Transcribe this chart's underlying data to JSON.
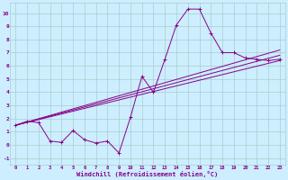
{
  "xlabel": "Windchill (Refroidissement éolien,°C)",
  "bg_color": "#cceeff",
  "grid_color": "#aacccc",
  "line_color": "#880088",
  "xlim": [
    -0.5,
    23.5
  ],
  "ylim": [
    -1.5,
    10.8
  ],
  "xticks": [
    0,
    1,
    2,
    3,
    4,
    5,
    6,
    7,
    8,
    9,
    10,
    11,
    12,
    13,
    14,
    15,
    16,
    17,
    18,
    19,
    20,
    21,
    22,
    23
  ],
  "yticks": [
    -1,
    0,
    1,
    2,
    3,
    4,
    5,
    6,
    7,
    8,
    9,
    10
  ],
  "series1_x": [
    0,
    1,
    2,
    3,
    4,
    5,
    6,
    7,
    8,
    9,
    10,
    11,
    12,
    13,
    14,
    15,
    16,
    17,
    18,
    19,
    20,
    21,
    22,
    23
  ],
  "series1_y": [
    1.5,
    1.8,
    1.7,
    0.3,
    0.2,
    1.1,
    0.4,
    0.15,
    0.3,
    -0.6,
    2.1,
    5.2,
    4.0,
    6.5,
    9.1,
    10.3,
    10.3,
    8.5,
    7.0,
    7.0,
    6.6,
    6.5,
    6.4,
    6.5
  ],
  "line1_x": [
    0,
    23
  ],
  "line1_y": [
    1.5,
    6.4
  ],
  "line2_x": [
    0,
    23
  ],
  "line2_y": [
    1.5,
    6.8
  ],
  "line3_x": [
    0,
    23
  ],
  "line3_y": [
    1.5,
    7.2
  ]
}
